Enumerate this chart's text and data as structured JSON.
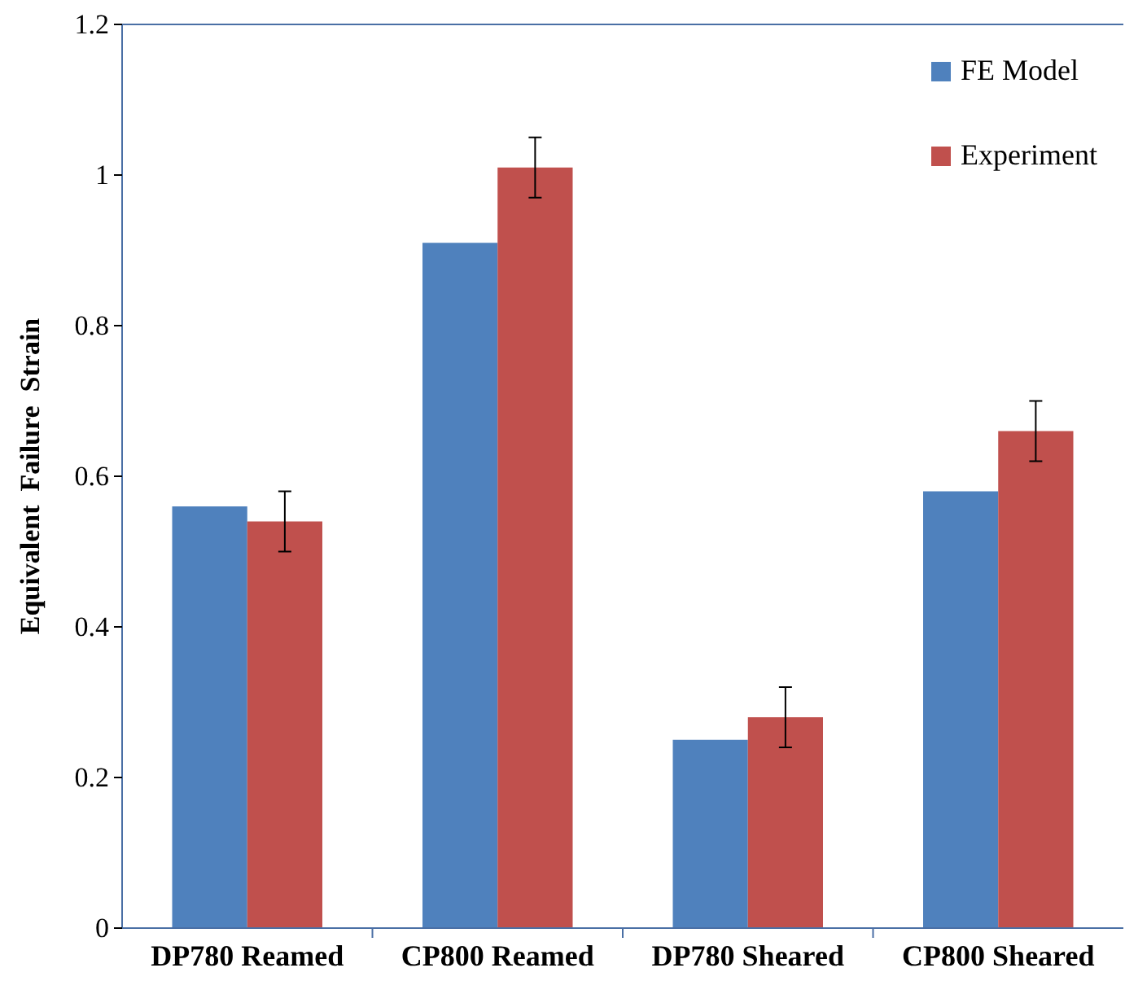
{
  "chart_data": {
    "type": "bar",
    "ylabel": "Equivalent  Failure  Strain",
    "categories": [
      "DP780 Reamed",
      "CP800 Reamed",
      "DP780 Sheared",
      "CP800 Sheared"
    ],
    "series": [
      {
        "name": "FE Model",
        "color": "#4f81bd",
        "values": [
          0.56,
          0.91,
          0.25,
          0.58
        ]
      },
      {
        "name": "Experiment",
        "color": "#c0504d",
        "values": [
          0.54,
          1.01,
          0.28,
          0.66
        ],
        "errors": [
          0.04,
          0.04,
          0.04,
          0.04
        ]
      }
    ],
    "ylim": [
      0,
      1.2
    ],
    "yticks": [
      0,
      0.2,
      0.4,
      0.6,
      0.8,
      1,
      1.2
    ],
    "grid": false,
    "legend": "top right"
  }
}
